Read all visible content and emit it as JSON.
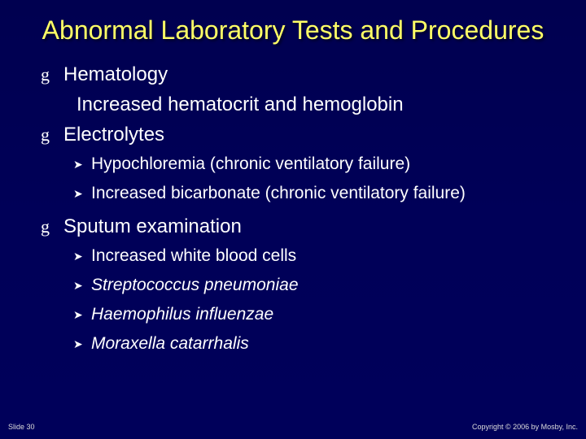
{
  "slide": {
    "background_gradient": [
      "#000050",
      "#00005a"
    ],
    "title": {
      "text": "Abnormal Laboratory Tests and Procedures",
      "color": "#ffff66",
      "fontsize": 32,
      "align": "center"
    },
    "bullets": [
      {
        "symbol": "g",
        "text": "Hematology",
        "fontsize": 24,
        "sub_indent": "Increased hematocrit and hemoglobin"
      },
      {
        "symbol": "g",
        "text": "Electrolytes",
        "fontsize": 24,
        "subs": [
          {
            "arrow": "➤",
            "text": "Hypochloremia (chronic ventilatory failure)",
            "italic": false
          },
          {
            "arrow": "➤",
            "text": "Increased bicarbonate (chronic ventilatory failure)",
            "italic": false
          }
        ]
      },
      {
        "symbol": "g",
        "text": "Sputum examination",
        "fontsize": 24,
        "subs": [
          {
            "arrow": "➤",
            "text": "Increased white blood cells",
            "italic": false
          },
          {
            "arrow": "➤",
            "text": "Streptococcus pneumoniae",
            "italic": true
          },
          {
            "arrow": "➤",
            "text": "Haemophilus influenzae",
            "italic": true
          },
          {
            "arrow": "➤",
            "text": "Moraxella catarrhalis",
            "italic": true
          }
        ]
      }
    ],
    "footer": {
      "left": "Slide 30",
      "right": "Copyright © 2006 by Mosby, Inc.",
      "fontsize": 9,
      "color": "#dcdcdc"
    },
    "colors": {
      "text": "#ffffff",
      "title": "#ffff66",
      "background": "#000054"
    },
    "bullet_style": {
      "level1_symbol_font": "Times New Roman",
      "level2_arrow": "➤"
    }
  }
}
